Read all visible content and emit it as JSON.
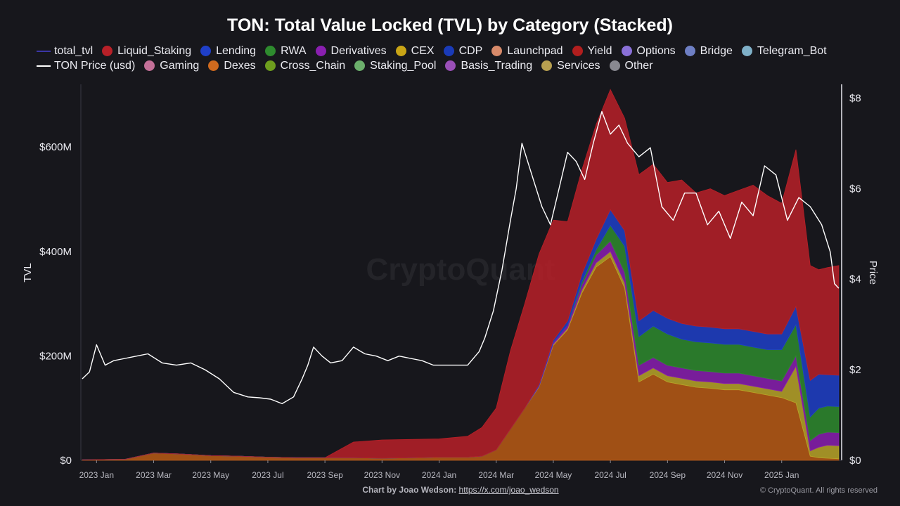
{
  "chart_data": {
    "type": "area",
    "stacked": true,
    "title": "TON: Total Value Locked (TVL) by Category (Stacked)",
    "ylabel": "TVL",
    "y2label": "Price",
    "ylim": [
      0,
      720
    ],
    "y2lim": [
      0,
      8.3
    ],
    "y_ticks": [
      0,
      200,
      400,
      600
    ],
    "y_tick_labels": [
      "$0",
      "$200M",
      "$400M",
      "$600M"
    ],
    "y2_ticks": [
      0,
      2,
      4,
      6,
      8
    ],
    "y2_tick_labels": [
      "$0",
      "$2",
      "$4",
      "$6",
      "$8"
    ],
    "x_tick_labels": [
      "2023 Jan",
      "2023 Mar",
      "2023 May",
      "2023 Jul",
      "2023 Sep",
      "2023 Nov",
      "2024 Jan",
      "2024 Mar",
      "2024 May",
      "2024 Jul",
      "2024 Sep",
      "2024 Nov",
      "2025 Jan"
    ],
    "x_tick_months": [
      1,
      3,
      5,
      7,
      9,
      11,
      13,
      15,
      17,
      19,
      21,
      23,
      25
    ],
    "x_range_months": [
      0.45,
      27.1
    ],
    "watermark": "CryptoQuant",
    "months": [
      0.5,
      2,
      3,
      4,
      5,
      6,
      7,
      8,
      9,
      10,
      11,
      12,
      13,
      14,
      14.5,
      15,
      15.5,
      16,
      16.5,
      17,
      17.5,
      18,
      18.5,
      19,
      19.5,
      20,
      20.5,
      21,
      21.5,
      22,
      22.5,
      23,
      23.5,
      24,
      24.5,
      25,
      25.5,
      26,
      26.3,
      26.6,
      27
    ],
    "tvl_series": [
      {
        "name": "Dexes",
        "color": "#b85a14",
        "values": [
          1,
          2,
          14,
          12,
          9,
          8,
          6,
          5,
          5,
          5,
          4,
          5,
          6,
          6,
          8,
          20,
          60,
          100,
          140,
          220,
          250,
          320,
          370,
          390,
          330,
          150,
          165,
          150,
          145,
          140,
          138,
          135,
          135,
          130,
          125,
          120,
          110,
          8,
          5,
          4,
          3
        ]
      },
      {
        "name": "Services",
        "color": "#b8a428",
        "values": [
          0,
          0,
          0,
          0,
          0,
          0,
          0,
          0,
          0,
          0,
          0,
          0,
          0,
          0,
          0,
          0,
          0,
          0,
          1,
          2,
          3,
          6,
          8,
          10,
          10,
          12,
          12,
          12,
          12,
          12,
          12,
          12,
          12,
          12,
          12,
          12,
          70,
          10,
          20,
          25,
          25
        ]
      },
      {
        "name": "Derivatives",
        "color": "#8a1fb0",
        "values": [
          0,
          0,
          0,
          0,
          0,
          0,
          0,
          0,
          0,
          0,
          0,
          0,
          0,
          0,
          0,
          0,
          0,
          0,
          2,
          4,
          6,
          10,
          15,
          20,
          20,
          20,
          20,
          20,
          20,
          20,
          20,
          20,
          20,
          20,
          20,
          20,
          20,
          20,
          25,
          25,
          25
        ]
      },
      {
        "name": "RWA",
        "color": "#2e8b2e",
        "values": [
          0,
          0,
          0,
          0,
          0,
          0,
          0,
          0,
          0,
          0,
          0,
          0,
          0,
          0,
          0,
          0,
          0,
          0,
          0,
          0,
          0,
          5,
          10,
          30,
          50,
          55,
          60,
          60,
          55,
          55,
          55,
          55,
          55,
          55,
          55,
          60,
          60,
          45,
          50,
          50,
          50
        ]
      },
      {
        "name": "Lending",
        "color": "#1f3fc8",
        "values": [
          0,
          0,
          0,
          0,
          0,
          0,
          0,
          0,
          0,
          0,
          0,
          0,
          0,
          0,
          0,
          0,
          0,
          0,
          2,
          4,
          8,
          15,
          20,
          30,
          30,
          30,
          30,
          30,
          30,
          30,
          30,
          30,
          30,
          30,
          30,
          30,
          35,
          70,
          65,
          60,
          60
        ]
      },
      {
        "name": "Liquid_Staking",
        "color": "#b82028",
        "values": [
          0,
          0,
          0,
          0,
          0,
          0,
          0,
          0,
          0,
          30,
          35,
          35,
          35,
          40,
          55,
          80,
          150,
          200,
          250,
          230,
          190,
          200,
          220,
          230,
          215,
          280,
          280,
          260,
          275,
          255,
          265,
          255,
          265,
          280,
          265,
          250,
          300,
          220,
          200,
          205,
          210
        ]
      }
    ],
    "price_series": {
      "name": "TON Price (usd)",
      "color": "#ffffff",
      "x": [
        0.5,
        0.75,
        1.0,
        1.3,
        1.6,
        2.0,
        2.4,
        2.8,
        3.3,
        3.8,
        4.3,
        4.8,
        5.3,
        5.8,
        6.3,
        6.7,
        7.1,
        7.5,
        7.9,
        8.2,
        8.4,
        8.6,
        8.9,
        9.2,
        9.6,
        10.0,
        10.4,
        10.8,
        11.2,
        11.6,
        12.0,
        12.4,
        12.8,
        13.2,
        13.6,
        14.0,
        14.4,
        14.6,
        14.9,
        15.2,
        15.5,
        15.7,
        15.9,
        16.1,
        16.3,
        16.6,
        16.9,
        17.2,
        17.5,
        17.8,
        18.1,
        18.4,
        18.7,
        19.0,
        19.3,
        19.6,
        20.0,
        20.4,
        20.8,
        21.2,
        21.6,
        22.0,
        22.4,
        22.8,
        23.2,
        23.6,
        24.0,
        24.4,
        24.8,
        25.2,
        25.6,
        26.0,
        26.4,
        26.7,
        26.85,
        27.0
      ],
      "values": [
        1.8,
        1.95,
        2.55,
        2.1,
        2.2,
        2.25,
        2.3,
        2.35,
        2.15,
        2.1,
        2.15,
        2.0,
        1.8,
        1.5,
        1.4,
        1.38,
        1.35,
        1.25,
        1.4,
        1.8,
        2.1,
        2.5,
        2.3,
        2.15,
        2.2,
        2.5,
        2.35,
        2.3,
        2.2,
        2.3,
        2.25,
        2.2,
        2.1,
        2.1,
        2.1,
        2.1,
        2.4,
        2.7,
        3.3,
        4.2,
        5.3,
        6.0,
        7.0,
        6.6,
        6.2,
        5.6,
        5.2,
        6.0,
        6.8,
        6.6,
        6.2,
        7.0,
        7.7,
        7.2,
        7.4,
        7.0,
        6.7,
        6.9,
        5.6,
        5.3,
        5.9,
        5.9,
        5.2,
        5.5,
        4.9,
        5.7,
        5.4,
        6.5,
        6.3,
        5.3,
        5.8,
        5.6,
        5.2,
        4.6,
        3.9,
        3.8
      ]
    }
  },
  "legend": {
    "row1": [
      {
        "label": "total_tvl",
        "color": "#3b36a6",
        "kind": "line"
      },
      {
        "label": "Liquid_Staking",
        "color": "#b82028",
        "kind": "dot"
      },
      {
        "label": "Lending",
        "color": "#1f3fc8",
        "kind": "dot"
      },
      {
        "label": "RWA",
        "color": "#2e8b2e",
        "kind": "dot"
      },
      {
        "label": "Derivatives",
        "color": "#8a1fb0",
        "kind": "dot"
      },
      {
        "label": "CEX",
        "color": "#c9a516",
        "kind": "dot"
      },
      {
        "label": "CDP",
        "color": "#1a3bb8",
        "kind": "dot"
      },
      {
        "label": "Launchpad",
        "color": "#d88a6a",
        "kind": "dot"
      },
      {
        "label": "Yield",
        "color": "#b21e1e",
        "kind": "dot"
      },
      {
        "label": "Options",
        "color": "#8a70d8",
        "kind": "dot"
      },
      {
        "label": "Bridge",
        "color": "#6e7fc4",
        "kind": "dot"
      },
      {
        "label": "Telegram_Bot",
        "color": "#7fb0c8",
        "kind": "dot"
      }
    ],
    "row2": [
      {
        "label": "TON Price (usd)",
        "color": "#ffffff",
        "kind": "line"
      },
      {
        "label": "Gaming",
        "color": "#c47098",
        "kind": "dot"
      },
      {
        "label": "Dexes",
        "color": "#d06a1e",
        "kind": "dot"
      },
      {
        "label": "Cross_Chain",
        "color": "#6e9e1e",
        "kind": "dot"
      },
      {
        "label": "Staking_Pool",
        "color": "#6cb06c",
        "kind": "dot"
      },
      {
        "label": "Basis_Trading",
        "color": "#9a4fb8",
        "kind": "dot"
      },
      {
        "label": "Services",
        "color": "#b8a050",
        "kind": "dot"
      },
      {
        "label": "Other",
        "color": "#888890",
        "kind": "dot"
      }
    ]
  },
  "footer": {
    "credit_prefix": "Chart by Joao Wedson:",
    "credit_link": "https://x.com/joao_wedson",
    "copyright": "© CryptoQuant. All rights reserved"
  }
}
